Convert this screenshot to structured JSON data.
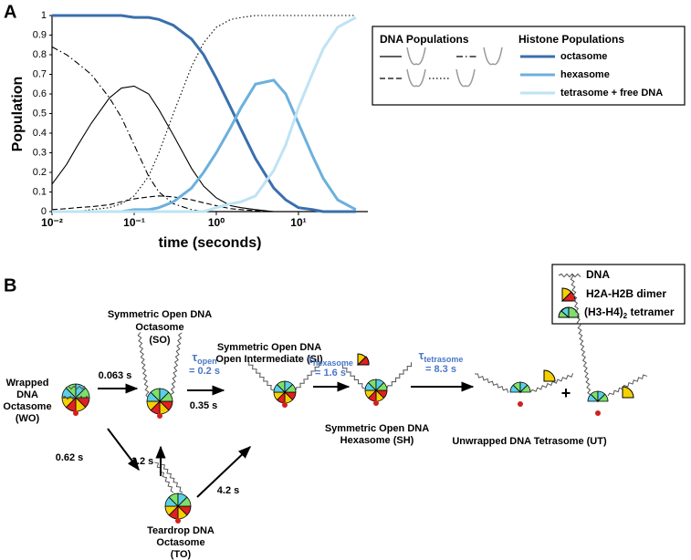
{
  "chart_data": {
    "type": "line",
    "panel": "A",
    "xlabel": "time (seconds)",
    "ylabel": "Population",
    "xscale": "log",
    "x": [
      0.01,
      0.015,
      0.02,
      0.03,
      0.05,
      0.07,
      0.1,
      0.15,
      0.2,
      0.3,
      0.5,
      0.7,
      1,
      1.5,
      2,
      3,
      5,
      7,
      10,
      15,
      20,
      30,
      50
    ],
    "xlim": [
      0.01,
      70
    ],
    "xticks": [
      {
        "value": 0.01,
        "label": "10⁻²"
      },
      {
        "value": 0.1,
        "label": "10⁻¹"
      },
      {
        "value": 1,
        "label": "10⁰"
      },
      {
        "value": 10,
        "label": "10¹"
      }
    ],
    "ylim": [
      0,
      1
    ],
    "yticks": [
      0,
      0.1,
      0.2,
      0.3,
      0.4,
      0.5,
      0.6,
      0.7,
      0.8,
      0.9,
      1
    ],
    "legend_titles": [
      "DNA Populations",
      "Histone Populations"
    ],
    "series": [
      {
        "color": "#000000",
        "dash": "solid",
        "values": [
          0.14,
          0.24,
          0.33,
          0.45,
          0.58,
          0.63,
          0.64,
          0.6,
          0.52,
          0.39,
          0.22,
          0.13,
          0.07,
          0.03,
          0.02,
          0.01,
          0,
          0,
          0,
          0,
          0,
          0,
          0
        ]
      },
      {
        "color": "#000000",
        "dash": "dashdot",
        "values": [
          0.84,
          0.8,
          0.76,
          0.7,
          0.58,
          0.48,
          0.34,
          0.18,
          0.1,
          0.04,
          0.01,
          0,
          0,
          0,
          0,
          0,
          0,
          0,
          0,
          0,
          0,
          0,
          0
        ]
      },
      {
        "color": "#000000",
        "dash": "dashed",
        "values": [
          0.01,
          0.015,
          0.02,
          0.025,
          0.035,
          0.05,
          0.065,
          0.075,
          0.08,
          0.075,
          0.06,
          0.045,
          0.03,
          0.015,
          0.01,
          0.005,
          0,
          0,
          0,
          0,
          0,
          0,
          0
        ]
      },
      {
        "color": "#000000",
        "dash": "dotted",
        "values": [
          0,
          0,
          0,
          0.01,
          0.02,
          0.04,
          0.08,
          0.18,
          0.3,
          0.5,
          0.74,
          0.86,
          0.94,
          0.98,
          0.99,
          1,
          1,
          1,
          1,
          1,
          1,
          1,
          1
        ]
      },
      {
        "name": "octasome",
        "color": "#3a6fad",
        "dash": "solid",
        "width": 3,
        "values": [
          1,
          1,
          1,
          1,
          1,
          1,
          0.99,
          0.99,
          0.98,
          0.95,
          0.88,
          0.8,
          0.68,
          0.53,
          0.42,
          0.27,
          0.12,
          0.06,
          0.02,
          0.01,
          0,
          0,
          0
        ]
      },
      {
        "name": "hexasome",
        "color": "#6cb0dd",
        "dash": "solid",
        "width": 3,
        "values": [
          0,
          0,
          0,
          0,
          0,
          0,
          0.01,
          0.01,
          0.02,
          0.05,
          0.12,
          0.2,
          0.3,
          0.43,
          0.53,
          0.65,
          0.67,
          0.6,
          0.45,
          0.28,
          0.17,
          0.06,
          0.01
        ]
      },
      {
        "name": "tetrasome + free DNA",
        "color": "#bfe3f3",
        "dash": "solid",
        "width": 3,
        "values": [
          0,
          0,
          0,
          0,
          0,
          0,
          0,
          0,
          0,
          0,
          0,
          0,
          0.02,
          0.04,
          0.05,
          0.08,
          0.21,
          0.34,
          0.53,
          0.71,
          0.83,
          0.94,
          0.99
        ]
      }
    ]
  },
  "diagram": {
    "panel": "B",
    "legend": [
      "DNA",
      "H2A-H2B dimer",
      "(H3-H4)",
      "2",
      "tetramer"
    ],
    "nodes": [
      {
        "label": [
          "Wrapped",
          "DNA",
          "Octasome",
          "(WO)"
        ]
      },
      {
        "label": [
          "Symmetric Open DNA",
          "Octasome",
          "(SO)"
        ]
      },
      {
        "label": [
          "Symmetric Open DNA",
          "Open Intermediate (SI)"
        ]
      },
      {
        "label": [
          "Symmetric Open DNA",
          "Hexasome (SH)"
        ]
      },
      {
        "label": [
          "Unwrapped DNA Tetrasome (UT)"
        ]
      },
      {
        "label": [
          "Teardrop DNA",
          "Octasome",
          "(TO)"
        ]
      }
    ],
    "rates": [
      "0.063 s",
      "1.2 s",
      "0.62 s",
      "4.2 s",
      "0.35 s"
    ],
    "taus": [
      {
        "symbol": "τ",
        "subscript": "open",
        "value": "= 0.2 s"
      },
      {
        "symbol": "τ",
        "subscript": "hexasome",
        "value": "= 1.6 s"
      },
      {
        "symbol": "τ",
        "subscript": "tetrasome",
        "value": "= 8.3 s"
      }
    ],
    "plus": "+"
  }
}
